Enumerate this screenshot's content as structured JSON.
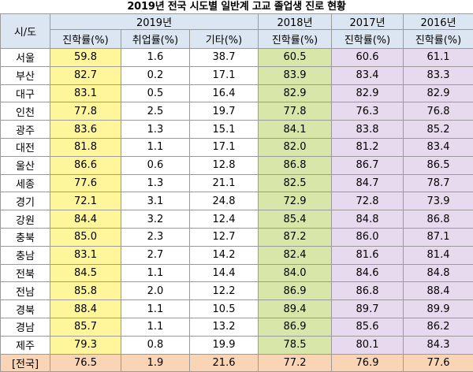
{
  "title": "2019년 전국 시도별 일반계 고교 졸업생 진로 현황",
  "header": {
    "region": "시/도",
    "years": [
      "2019년",
      "2018년",
      "2017년",
      "2016년"
    ],
    "sub": [
      "진학률(%)",
      "취업률(%)",
      "기타(%)",
      "진학률(%)",
      "진학률(%)",
      "진학률(%)"
    ]
  },
  "rows": [
    {
      "region": "서울",
      "v": [
        "59.8",
        "1.6",
        "38.7",
        "60.5",
        "60.6",
        "61.1"
      ]
    },
    {
      "region": "부산",
      "v": [
        "82.7",
        "0.2",
        "17.1",
        "83.9",
        "83.4",
        "83.3"
      ]
    },
    {
      "region": "대구",
      "v": [
        "83.1",
        "0.5",
        "16.4",
        "82.9",
        "82.9",
        "82.9"
      ]
    },
    {
      "region": "인천",
      "v": [
        "77.8",
        "2.5",
        "19.7",
        "77.8",
        "76.3",
        "76.8"
      ]
    },
    {
      "region": "광주",
      "v": [
        "83.6",
        "1.3",
        "15.1",
        "84.1",
        "83.8",
        "85.2"
      ]
    },
    {
      "region": "대전",
      "v": [
        "81.8",
        "1.1",
        "17.1",
        "82.0",
        "81.2",
        "83.4"
      ]
    },
    {
      "region": "울산",
      "v": [
        "86.6",
        "0.6",
        "12.8",
        "86.8",
        "86.7",
        "86.5"
      ]
    },
    {
      "region": "세종",
      "v": [
        "77.6",
        "1.3",
        "21.1",
        "82.5",
        "84.7",
        "78.7"
      ]
    },
    {
      "region": "경기",
      "v": [
        "72.1",
        "3.1",
        "24.8",
        "72.9",
        "72.8",
        "73.9"
      ]
    },
    {
      "region": "강원",
      "v": [
        "84.4",
        "3.2",
        "12.4",
        "85.4",
        "84.8",
        "86.8"
      ]
    },
    {
      "region": "충북",
      "v": [
        "85.0",
        "2.3",
        "12.7",
        "87.2",
        "86.0",
        "87.1"
      ]
    },
    {
      "region": "충남",
      "v": [
        "83.1",
        "2.7",
        "14.2",
        "82.4",
        "81.6",
        "81.4"
      ]
    },
    {
      "region": "전북",
      "v": [
        "84.5",
        "1.1",
        "14.4",
        "84.0",
        "84.6",
        "84.8"
      ]
    },
    {
      "region": "전남",
      "v": [
        "85.8",
        "2.0",
        "12.2",
        "86.9",
        "86.8",
        "88.4"
      ]
    },
    {
      "region": "경북",
      "v": [
        "88.4",
        "1.1",
        "10.5",
        "89.4",
        "89.7",
        "89.9"
      ]
    },
    {
      "region": "경남",
      "v": [
        "85.7",
        "1.1",
        "13.2",
        "86.9",
        "85.6",
        "86.2"
      ]
    },
    {
      "region": "제주",
      "v": [
        "79.3",
        "0.8",
        "19.9",
        "78.5",
        "80.1",
        "84.3"
      ]
    }
  ],
  "total": {
    "region": "[전국]",
    "v": [
      "76.5",
      "1.9",
      "21.6",
      "77.2",
      "76.9",
      "77.6"
    ]
  }
}
